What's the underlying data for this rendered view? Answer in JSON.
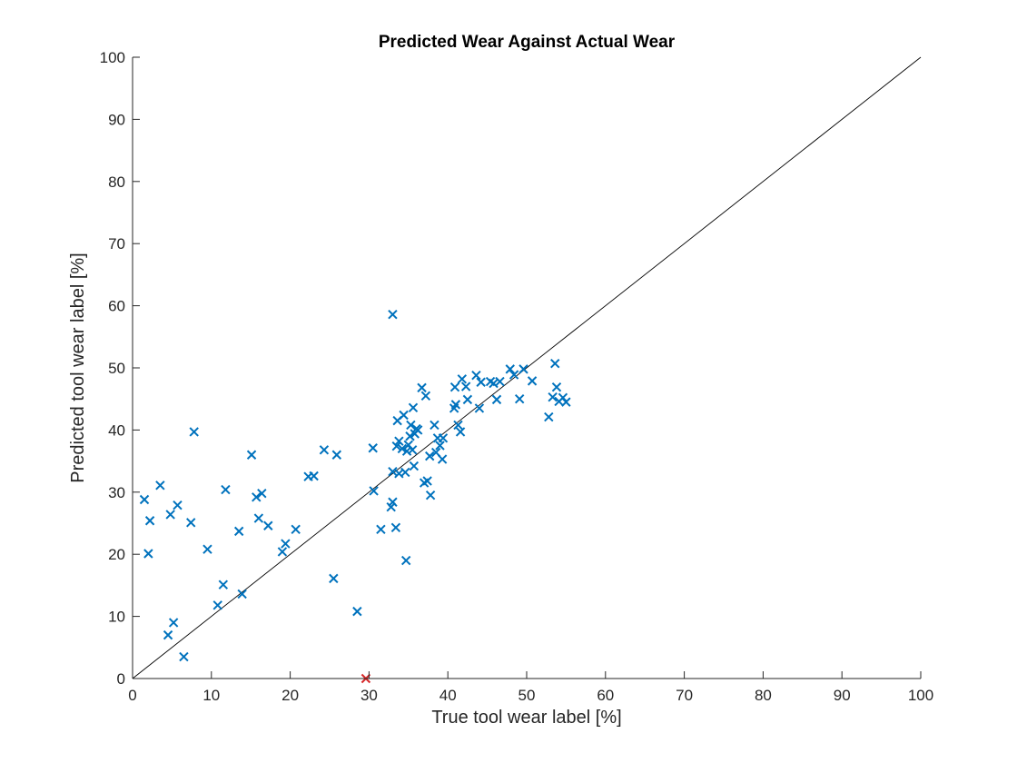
{
  "chart_data": {
    "type": "scatter",
    "title": "Predicted Wear Against Actual Wear",
    "xlabel": "True tool wear label [%]",
    "ylabel": "Predicted tool wear label [%]",
    "xlim": [
      0,
      100
    ],
    "ylim": [
      0,
      100
    ],
    "xticks": [
      0,
      10,
      20,
      30,
      40,
      50,
      60,
      70,
      80,
      90,
      100
    ],
    "yticks": [
      0,
      10,
      20,
      30,
      40,
      50,
      60,
      70,
      80,
      90,
      100
    ],
    "grid": false,
    "reference_line": {
      "from": [
        0,
        0
      ],
      "to": [
        100,
        100
      ]
    },
    "colors": {
      "points": "#0072BD",
      "outlier": "#D62728",
      "reference_line": "#000000"
    },
    "series": [
      {
        "points": [
          {
            "x": 1.5,
            "y": 28.8
          },
          {
            "x": 2.0,
            "y": 20.1
          },
          {
            "x": 2.2,
            "y": 25.4
          },
          {
            "x": 3.5,
            "y": 31.1
          },
          {
            "x": 4.5,
            "y": 7.0
          },
          {
            "x": 4.8,
            "y": 26.4
          },
          {
            "x": 5.2,
            "y": 9.0
          },
          {
            "x": 5.7,
            "y": 27.9
          },
          {
            "x": 6.5,
            "y": 3.5
          },
          {
            "x": 7.4,
            "y": 25.1
          },
          {
            "x": 7.8,
            "y": 39.7
          },
          {
            "x": 9.5,
            "y": 20.8
          },
          {
            "x": 10.8,
            "y": 11.8
          },
          {
            "x": 11.5,
            "y": 15.1
          },
          {
            "x": 11.8,
            "y": 30.4
          },
          {
            "x": 13.5,
            "y": 23.7
          },
          {
            "x": 13.9,
            "y": 13.6
          },
          {
            "x": 15.1,
            "y": 36.0
          },
          {
            "x": 15.7,
            "y": 29.2
          },
          {
            "x": 16.0,
            "y": 25.8
          },
          {
            "x": 16.4,
            "y": 29.8
          },
          {
            "x": 17.2,
            "y": 24.6
          },
          {
            "x": 19.0,
            "y": 20.4
          },
          {
            "x": 19.4,
            "y": 21.7
          },
          {
            "x": 20.7,
            "y": 24.0
          },
          {
            "x": 22.3,
            "y": 32.5
          },
          {
            "x": 23.0,
            "y": 32.6
          },
          {
            "x": 24.3,
            "y": 36.8
          },
          {
            "x": 25.5,
            "y": 16.1
          },
          {
            "x": 25.9,
            "y": 36.0
          },
          {
            "x": 28.5,
            "y": 10.8
          },
          {
            "x": 30.5,
            "y": 37.1
          },
          {
            "x": 30.6,
            "y": 30.2
          },
          {
            "x": 31.5,
            "y": 24.0
          },
          {
            "x": 32.8,
            "y": 27.6
          },
          {
            "x": 33.0,
            "y": 28.4
          },
          {
            "x": 33.0,
            "y": 33.3
          },
          {
            "x": 33.0,
            "y": 58.6
          },
          {
            "x": 33.4,
            "y": 24.3
          },
          {
            "x": 33.5,
            "y": 37.4
          },
          {
            "x": 33.6,
            "y": 41.5
          },
          {
            "x": 33.8,
            "y": 38.2
          },
          {
            "x": 33.8,
            "y": 33.0
          },
          {
            "x": 34.2,
            "y": 37.0
          },
          {
            "x": 34.4,
            "y": 42.4
          },
          {
            "x": 34.6,
            "y": 33.2
          },
          {
            "x": 34.7,
            "y": 19.0
          },
          {
            "x": 34.8,
            "y": 36.6
          },
          {
            "x": 35.0,
            "y": 37.6
          },
          {
            "x": 35.2,
            "y": 39.0
          },
          {
            "x": 35.3,
            "y": 40.8
          },
          {
            "x": 35.5,
            "y": 36.8
          },
          {
            "x": 35.6,
            "y": 43.6
          },
          {
            "x": 35.7,
            "y": 34.2
          },
          {
            "x": 35.8,
            "y": 39.4
          },
          {
            "x": 36.0,
            "y": 40.2
          },
          {
            "x": 36.2,
            "y": 40.0
          },
          {
            "x": 36.7,
            "y": 46.8
          },
          {
            "x": 37.0,
            "y": 31.5
          },
          {
            "x": 37.2,
            "y": 45.5
          },
          {
            "x": 37.4,
            "y": 31.8
          },
          {
            "x": 37.7,
            "y": 35.8
          },
          {
            "x": 37.8,
            "y": 29.5
          },
          {
            "x": 38.3,
            "y": 40.8
          },
          {
            "x": 38.5,
            "y": 36.4
          },
          {
            "x": 38.7,
            "y": 38.7
          },
          {
            "x": 39.0,
            "y": 37.5
          },
          {
            "x": 39.3,
            "y": 35.3
          },
          {
            "x": 39.4,
            "y": 38.7
          },
          {
            "x": 40.8,
            "y": 43.5
          },
          {
            "x": 40.9,
            "y": 46.9
          },
          {
            "x": 41.0,
            "y": 44.1
          },
          {
            "x": 41.3,
            "y": 40.8
          },
          {
            "x": 41.6,
            "y": 39.7
          },
          {
            "x": 41.8,
            "y": 48.2
          },
          {
            "x": 42.3,
            "y": 47.0
          },
          {
            "x": 42.5,
            "y": 44.9
          },
          {
            "x": 43.6,
            "y": 48.8
          },
          {
            "x": 44.0,
            "y": 43.5
          },
          {
            "x": 44.2,
            "y": 47.7
          },
          {
            "x": 45.4,
            "y": 47.8
          },
          {
            "x": 45.8,
            "y": 47.5
          },
          {
            "x": 46.2,
            "y": 44.9
          },
          {
            "x": 46.6,
            "y": 47.8
          },
          {
            "x": 47.9,
            "y": 49.8
          },
          {
            "x": 48.4,
            "y": 48.9
          },
          {
            "x": 49.1,
            "y": 45.0
          },
          {
            "x": 49.6,
            "y": 49.8
          },
          {
            "x": 50.7,
            "y": 47.9
          },
          {
            "x": 52.8,
            "y": 42.1
          },
          {
            "x": 53.3,
            "y": 45.3
          },
          {
            "x": 53.6,
            "y": 50.7
          },
          {
            "x": 53.8,
            "y": 46.9
          },
          {
            "x": 54.1,
            "y": 44.6
          },
          {
            "x": 54.6,
            "y": 45.2
          },
          {
            "x": 55.0,
            "y": 44.5
          }
        ]
      },
      {
        "points": [
          {
            "x": 29.6,
            "y": 0.0
          }
        ]
      }
    ]
  }
}
